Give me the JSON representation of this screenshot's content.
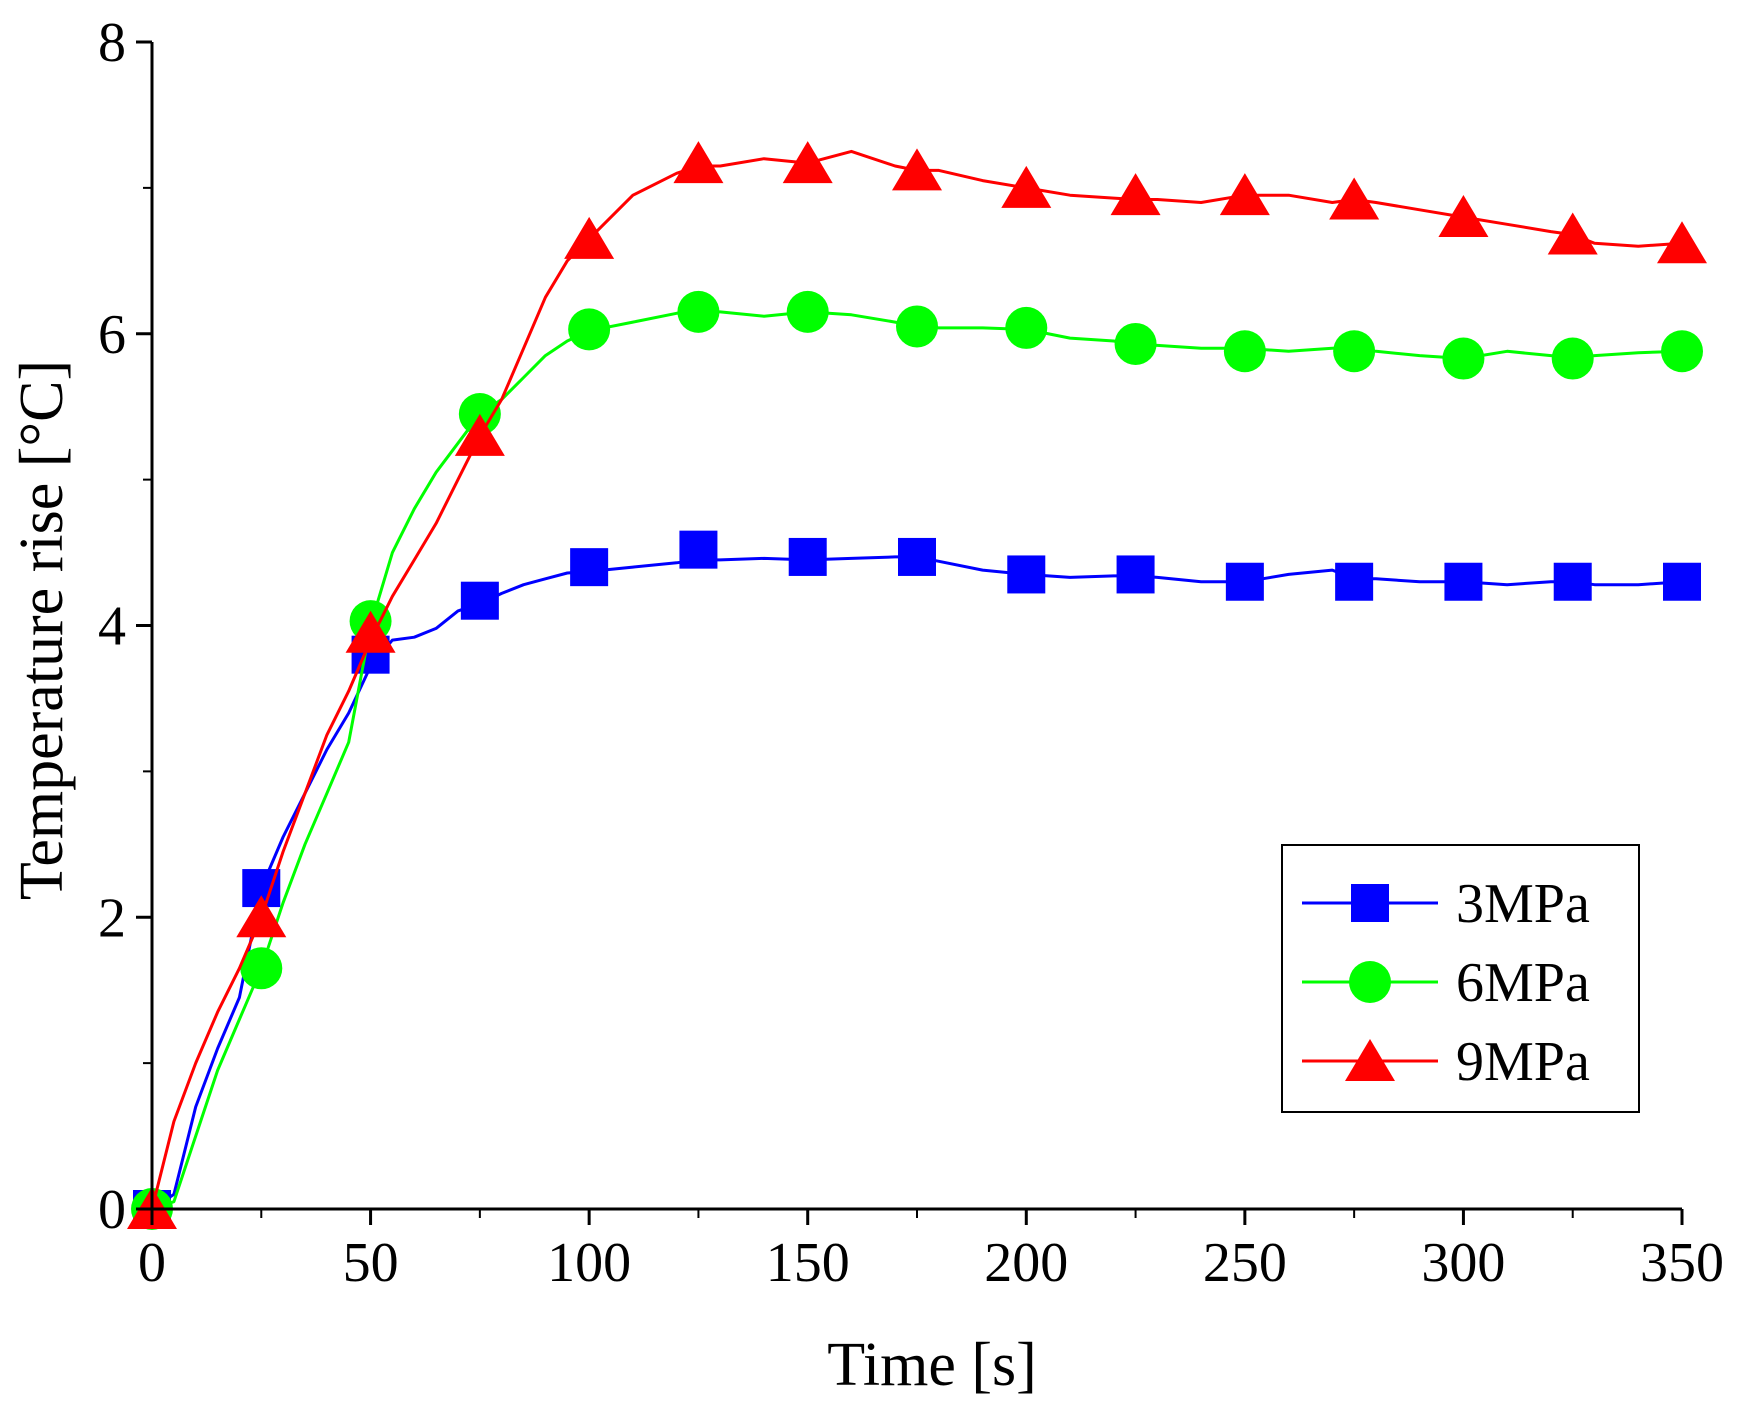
{
  "chart_data": {
    "type": "line",
    "title": "",
    "xlabel": "Time [s]",
    "ylabel": "Temperature rise [°C]",
    "xlim": [
      0,
      350
    ],
    "ylim": [
      0,
      8
    ],
    "xticks": [
      0,
      50,
      100,
      150,
      200,
      250,
      300,
      350
    ],
    "xtick_labels": [
      "0",
      "50",
      "100",
      "150",
      "200",
      "250",
      "300",
      "350"
    ],
    "yticks": [
      0,
      2,
      4,
      6,
      8
    ],
    "ytick_labels": [
      "0",
      "2",
      "4",
      "6",
      "8"
    ],
    "yminor_ticks": [
      1,
      3,
      5,
      7
    ],
    "grid": false,
    "legend_position": "center-right",
    "series": [
      {
        "name": "3MPa",
        "color": "#0000ff",
        "marker": "square",
        "line": [
          [
            0,
            0
          ],
          [
            5,
            0.1
          ],
          [
            10,
            0.7
          ],
          [
            15,
            1.1
          ],
          [
            20,
            1.45
          ],
          [
            25,
            2.2
          ],
          [
            30,
            2.55
          ],
          [
            35,
            2.85
          ],
          [
            40,
            3.15
          ],
          [
            45,
            3.4
          ],
          [
            50,
            3.72
          ],
          [
            55,
            3.9
          ],
          [
            60,
            3.92
          ],
          [
            65,
            3.98
          ],
          [
            70,
            4.1
          ],
          [
            75,
            4.15
          ],
          [
            80,
            4.22
          ],
          [
            85,
            4.28
          ],
          [
            90,
            4.32
          ],
          [
            95,
            4.36
          ],
          [
            100,
            4.37
          ],
          [
            110,
            4.4
          ],
          [
            120,
            4.43
          ],
          [
            125,
            4.45
          ],
          [
            130,
            4.45
          ],
          [
            140,
            4.46
          ],
          [
            150,
            4.45
          ],
          [
            160,
            4.46
          ],
          [
            170,
            4.47
          ],
          [
            175,
            4.47
          ],
          [
            180,
            4.44
          ],
          [
            190,
            4.38
          ],
          [
            200,
            4.35
          ],
          [
            210,
            4.33
          ],
          [
            220,
            4.34
          ],
          [
            225,
            4.34
          ],
          [
            230,
            4.33
          ],
          [
            240,
            4.3
          ],
          [
            250,
            4.3
          ],
          [
            260,
            4.35
          ],
          [
            270,
            4.38
          ],
          [
            275,
            4.32
          ],
          [
            280,
            4.32
          ],
          [
            290,
            4.3
          ],
          [
            300,
            4.3
          ],
          [
            310,
            4.28
          ],
          [
            320,
            4.3
          ],
          [
            325,
            4.3
          ],
          [
            330,
            4.28
          ],
          [
            340,
            4.28
          ],
          [
            350,
            4.3
          ]
        ],
        "markers": [
          [
            0,
            0
          ],
          [
            25,
            2.2
          ],
          [
            50,
            3.8
          ],
          [
            75,
            4.17
          ],
          [
            100,
            4.4
          ],
          [
            125,
            4.52
          ],
          [
            150,
            4.47
          ],
          [
            175,
            4.47
          ],
          [
            200,
            4.35
          ],
          [
            225,
            4.35
          ],
          [
            250,
            4.3
          ],
          [
            275,
            4.3
          ],
          [
            300,
            4.3
          ],
          [
            325,
            4.3
          ],
          [
            350,
            4.3
          ]
        ]
      },
      {
        "name": "6MPa",
        "color": "#00ff00",
        "marker": "circle",
        "line": [
          [
            0,
            0
          ],
          [
            5,
            0.05
          ],
          [
            10,
            0.5
          ],
          [
            15,
            0.95
          ],
          [
            20,
            1.3
          ],
          [
            25,
            1.65
          ],
          [
            30,
            2.1
          ],
          [
            35,
            2.5
          ],
          [
            40,
            2.85
          ],
          [
            45,
            3.2
          ],
          [
            50,
            4.0
          ],
          [
            55,
            4.5
          ],
          [
            60,
            4.8
          ],
          [
            65,
            5.05
          ],
          [
            70,
            5.25
          ],
          [
            75,
            5.45
          ],
          [
            80,
            5.55
          ],
          [
            85,
            5.7
          ],
          [
            90,
            5.85
          ],
          [
            95,
            5.95
          ],
          [
            100,
            6.02
          ],
          [
            110,
            6.08
          ],
          [
            120,
            6.14
          ],
          [
            125,
            6.15
          ],
          [
            130,
            6.15
          ],
          [
            140,
            6.12
          ],
          [
            150,
            6.15
          ],
          [
            160,
            6.13
          ],
          [
            170,
            6.08
          ],
          [
            175,
            6.05
          ],
          [
            180,
            6.04
          ],
          [
            190,
            6.04
          ],
          [
            200,
            6.03
          ],
          [
            210,
            5.97
          ],
          [
            220,
            5.95
          ],
          [
            225,
            5.92
          ],
          [
            230,
            5.92
          ],
          [
            240,
            5.9
          ],
          [
            250,
            5.9
          ],
          [
            260,
            5.88
          ],
          [
            270,
            5.9
          ],
          [
            275,
            5.9
          ],
          [
            280,
            5.88
          ],
          [
            290,
            5.85
          ],
          [
            300,
            5.83
          ],
          [
            310,
            5.88
          ],
          [
            320,
            5.85
          ],
          [
            325,
            5.83
          ],
          [
            330,
            5.85
          ],
          [
            340,
            5.87
          ],
          [
            350,
            5.88
          ]
        ],
        "markers": [
          [
            0,
            0
          ],
          [
            25,
            1.65
          ],
          [
            50,
            4.03
          ],
          [
            75,
            5.45
          ],
          [
            100,
            6.03
          ],
          [
            125,
            6.15
          ],
          [
            150,
            6.15
          ],
          [
            175,
            6.05
          ],
          [
            200,
            6.04
          ],
          [
            225,
            5.93
          ],
          [
            250,
            5.88
          ],
          [
            275,
            5.88
          ],
          [
            300,
            5.83
          ],
          [
            325,
            5.83
          ],
          [
            350,
            5.88
          ]
        ]
      },
      {
        "name": "9MPa",
        "color": "#ff0000",
        "marker": "triangle",
        "line": [
          [
            0,
            0
          ],
          [
            5,
            0.6
          ],
          [
            10,
            1.0
          ],
          [
            15,
            1.35
          ],
          [
            20,
            1.65
          ],
          [
            25,
            2.0
          ],
          [
            30,
            2.45
          ],
          [
            35,
            2.85
          ],
          [
            40,
            3.25
          ],
          [
            45,
            3.55
          ],
          [
            50,
            3.9
          ],
          [
            55,
            4.2
          ],
          [
            60,
            4.45
          ],
          [
            65,
            4.7
          ],
          [
            70,
            5.0
          ],
          [
            75,
            5.3
          ],
          [
            80,
            5.55
          ],
          [
            85,
            5.9
          ],
          [
            90,
            6.25
          ],
          [
            95,
            6.5
          ],
          [
            100,
            6.65
          ],
          [
            110,
            6.95
          ],
          [
            120,
            7.1
          ],
          [
            125,
            7.15
          ],
          [
            130,
            7.15
          ],
          [
            140,
            7.2
          ],
          [
            150,
            7.17
          ],
          [
            160,
            7.25
          ],
          [
            170,
            7.15
          ],
          [
            175,
            7.12
          ],
          [
            180,
            7.12
          ],
          [
            190,
            7.05
          ],
          [
            200,
            7.0
          ],
          [
            210,
            6.95
          ],
          [
            220,
            6.93
          ],
          [
            225,
            6.92
          ],
          [
            230,
            6.92
          ],
          [
            240,
            6.9
          ],
          [
            250,
            6.95
          ],
          [
            260,
            6.95
          ],
          [
            270,
            6.9
          ],
          [
            275,
            6.92
          ],
          [
            280,
            6.9
          ],
          [
            290,
            6.85
          ],
          [
            300,
            6.8
          ],
          [
            310,
            6.75
          ],
          [
            320,
            6.7
          ],
          [
            325,
            6.68
          ],
          [
            330,
            6.62
          ],
          [
            340,
            6.6
          ],
          [
            350,
            6.62
          ]
        ],
        "markers": [
          [
            0,
            0
          ],
          [
            25,
            2.0
          ],
          [
            50,
            3.95
          ],
          [
            75,
            5.3
          ],
          [
            100,
            6.65
          ],
          [
            125,
            7.17
          ],
          [
            150,
            7.17
          ],
          [
            175,
            7.12
          ],
          [
            200,
            7.0
          ],
          [
            225,
            6.95
          ],
          [
            250,
            6.95
          ],
          [
            275,
            6.92
          ],
          [
            300,
            6.8
          ],
          [
            325,
            6.68
          ],
          [
            350,
            6.62
          ]
        ]
      }
    ]
  }
}
